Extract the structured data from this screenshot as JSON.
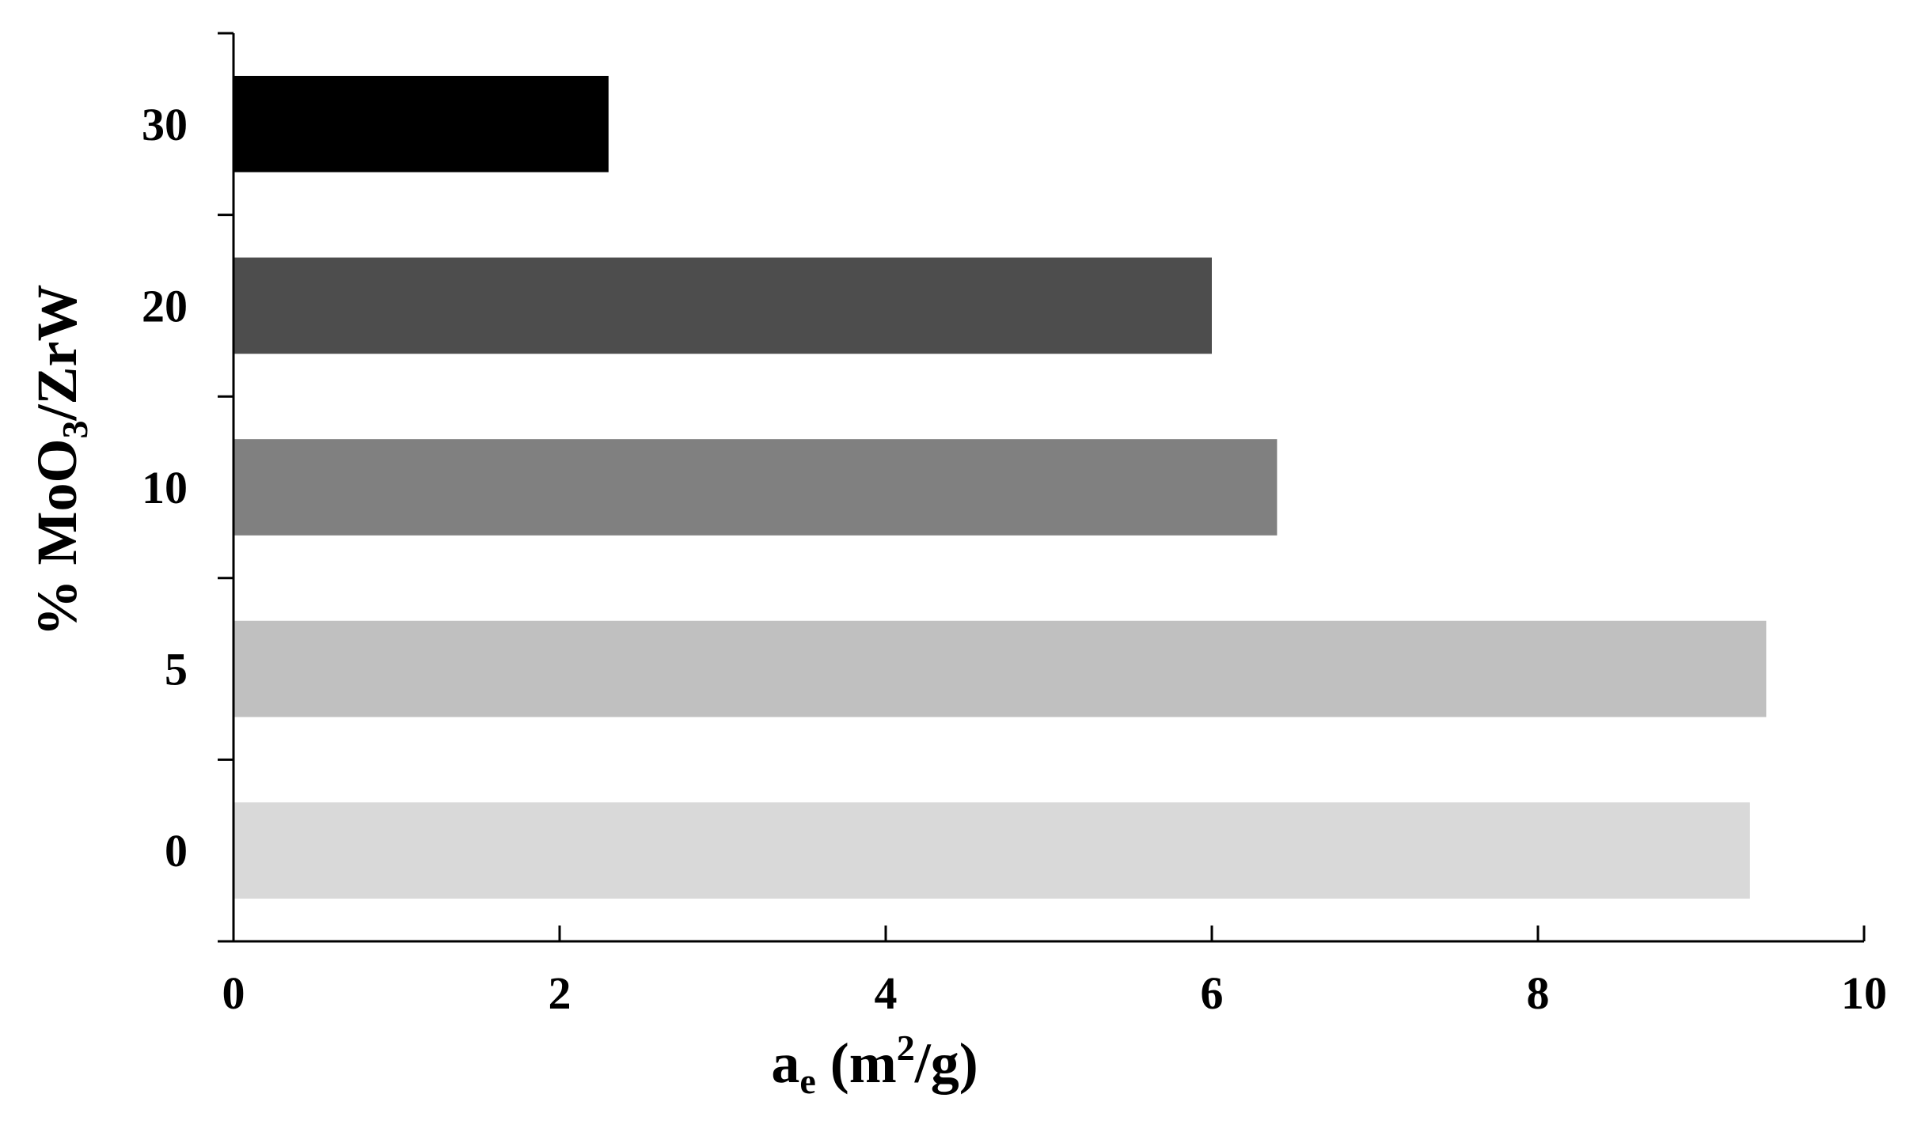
{
  "chart_data": {
    "type": "bar",
    "orientation": "horizontal",
    "title": "",
    "categories": [
      "0",
      "5",
      "10",
      "20",
      "30"
    ],
    "values": [
      9.3,
      9.4,
      6.4,
      6.0,
      2.3
    ],
    "bar_colors": [
      "#d9d9d9",
      "#c0c0c0",
      "#808080",
      "#4d4d4d",
      "#000000"
    ],
    "xlabel": {
      "main": "a",
      "sub": "e",
      "unit_open": " (m",
      "sup": "2",
      "unit_close": "/g)"
    },
    "ylabel": {
      "main": "% MoO",
      "sub": "3",
      "rest": "/ZrW"
    },
    "xlim": [
      0,
      10
    ],
    "xticks": [
      0,
      2,
      4,
      6,
      8,
      10
    ],
    "xtick_labels": [
      "0",
      "2",
      "4",
      "6",
      "8",
      "10"
    ],
    "grid": false,
    "legend": "none"
  }
}
